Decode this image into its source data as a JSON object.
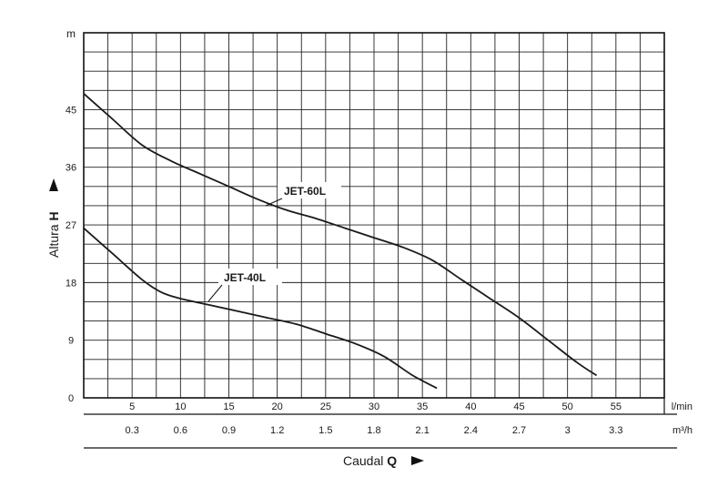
{
  "chart_data": {
    "type": "line",
    "x_unit": "l/min",
    "x_unit_secondary": "m³/h",
    "y_unit": "m",
    "xlim": [
      0,
      60
    ],
    "ylim": [
      0,
      57
    ],
    "x_ticks": [
      "5",
      "10",
      "15",
      "20",
      "25",
      "30",
      "35",
      "40",
      "45",
      "50",
      "55"
    ],
    "x_ticks_secondary": [
      "0.3",
      "0.6",
      "0.9",
      "1.2",
      "1.5",
      "1.8",
      "2.1",
      "2.4",
      "2.7",
      "3",
      "3.3"
    ],
    "y_ticks": [
      "0",
      "9",
      "18",
      "27",
      "36",
      "45"
    ],
    "xlabel": "Caudal",
    "xlabel_symbol": "Q",
    "ylabel": "Altura",
    "ylabel_symbol": "H",
    "grid": true,
    "series": [
      {
        "name": "JET-60L",
        "color": "#1a1a1a",
        "x": [
          0,
          3,
          6,
          9,
          12,
          15,
          18,
          21,
          24,
          27,
          30,
          33,
          36,
          39,
          42,
          45,
          48,
          51,
          53
        ],
        "y": [
          47.5,
          43.5,
          39.5,
          37,
          35,
          33,
          31,
          29.3,
          28,
          26.5,
          25,
          23.5,
          21.5,
          18.5,
          15.5,
          12.5,
          9,
          5.5,
          3.5
        ]
      },
      {
        "name": "JET-40L",
        "color": "#1a1a1a",
        "x": [
          0,
          3,
          6,
          8,
          10,
          13,
          16,
          19,
          22,
          25,
          28,
          31,
          34,
          36.5
        ],
        "y": [
          26.5,
          22.5,
          18.5,
          16.5,
          15.5,
          14.5,
          13.5,
          12.5,
          11.5,
          10,
          8.5,
          6.5,
          3.5,
          1.5
        ]
      }
    ]
  }
}
